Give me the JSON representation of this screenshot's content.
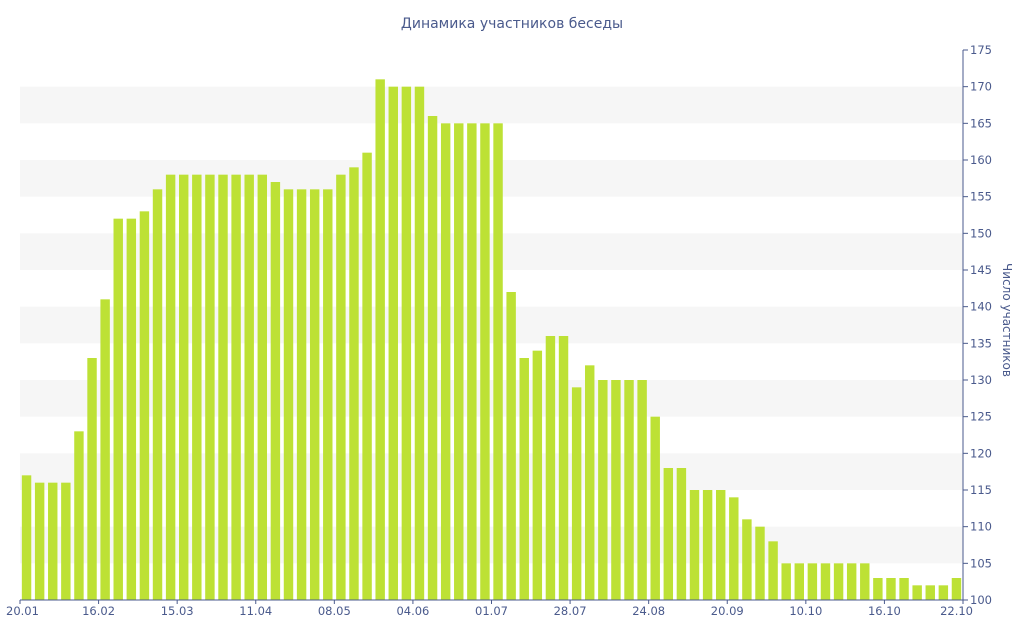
{
  "chart_data": {
    "type": "bar",
    "title": "Динамика участников беседы",
    "xlabel": "",
    "ylabel": "Число участников",
    "ylim": [
      100,
      175
    ],
    "yticks": [
      100,
      105,
      110,
      115,
      120,
      125,
      130,
      135,
      140,
      145,
      150,
      155,
      160,
      165,
      170,
      175
    ],
    "x_tick_labels": [
      "20.01",
      "16.02",
      "15.03",
      "11.04",
      "08.05",
      "04.06",
      "01.07",
      "28.07",
      "24.08",
      "20.09",
      "10.10",
      "16.10",
      "22.10"
    ],
    "grid": "alternating horizontal bands",
    "colors": {
      "bar": "#bde135",
      "band": "#f6f6f6",
      "axis": "#4a5a8c",
      "text": "#4a5a8c"
    },
    "values": [
      117,
      116,
      116,
      116,
      123,
      133,
      141,
      152,
      152,
      153,
      156,
      158,
      158,
      158,
      158,
      158,
      158,
      158,
      158,
      157,
      156,
      156,
      156,
      156,
      158,
      159,
      161,
      171,
      170,
      170,
      170,
      166,
      165,
      165,
      165,
      165,
      165,
      142,
      133,
      134,
      136,
      136,
      129,
      132,
      130,
      130,
      130,
      130,
      125,
      118,
      118,
      115,
      115,
      115,
      114,
      111,
      110,
      108,
      105,
      105,
      105,
      105,
      105,
      105,
      105,
      103,
      103,
      103,
      102,
      102,
      102,
      103
    ]
  }
}
